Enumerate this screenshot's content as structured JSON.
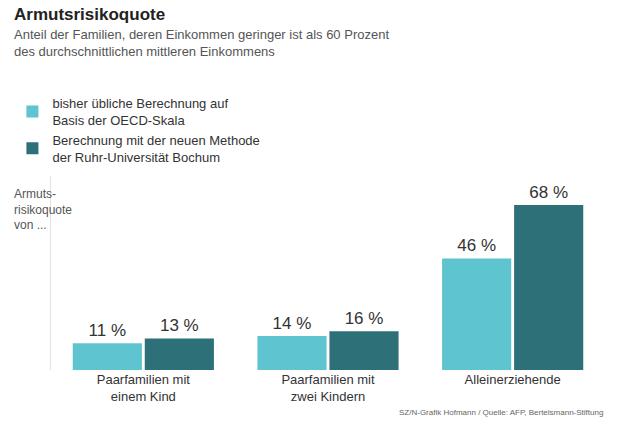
{
  "chart_data": {
    "type": "bar",
    "title": "Armutsrisikoquote",
    "subtitle": "Anteil der Familien, deren Einkommen geringer ist als 60 Prozent des durchschnittlichen mittleren Einkommens",
    "y_label": "Armuts-risikoquote von ...",
    "source": "SZ/N-Grafik Hofmann / Quelle: AFP, Bertelsmann-Stiftung",
    "categories": [
      "Paarfamilien mit einem Kind",
      "Paarfamilien mit zwei Kindern",
      "Alleinerziehende"
    ],
    "series": [
      {
        "name": "bisher übliche Berechnung auf Basis der OECD-Skala",
        "color": "#5ec4d0",
        "values": [
          11,
          14,
          46
        ],
        "value_labels": [
          "11 %",
          "14 %",
          "46 %"
        ]
      },
      {
        "name": "Berechnung mit der neuen Methode der Ruhr-Universität Bochum",
        "color": "#2e7078",
        "values": [
          13,
          16,
          68
        ],
        "value_labels": [
          "13 %",
          "16 %",
          "68 %"
        ]
      }
    ],
    "ylim": [
      0,
      80
    ],
    "tick_labels": "x",
    "data_labels": true,
    "legend": "top left",
    "grid": false
  }
}
